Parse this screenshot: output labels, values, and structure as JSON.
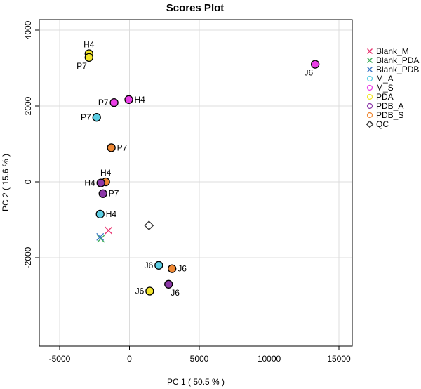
{
  "chart_data": {
    "type": "scatter",
    "title": "Scores Plot",
    "xlabel": "PC 1 ( 50.5 % )",
    "ylabel": "PC 2 ( 15.6 % )",
    "xlim": [
      -5000,
      15000
    ],
    "ylim": [
      -4000,
      4000
    ],
    "x_ticks": [
      -5000,
      0,
      5000,
      10000,
      15000
    ],
    "y_ticks": [
      -2000,
      0,
      2000,
      4000
    ],
    "grid": true,
    "legend_position": "right",
    "legend": [
      {
        "name": "Blank_M",
        "color": "#e8336f",
        "marker": "x"
      },
      {
        "name": "Blank_PDA",
        "color": "#3fae5a",
        "marker": "x"
      },
      {
        "name": "Blank_PDB",
        "color": "#3a76c6",
        "marker": "x"
      },
      {
        "name": "M_A",
        "color": "#5bcde3",
        "marker": "circle"
      },
      {
        "name": "M_S",
        "color": "#ea3ee6",
        "marker": "circle"
      },
      {
        "name": "PDA",
        "color": "#f2e52a",
        "marker": "circle"
      },
      {
        "name": "PDB_A",
        "color": "#8c38a8",
        "marker": "circle"
      },
      {
        "name": "PDB_S",
        "color": "#ee8733",
        "marker": "circle"
      },
      {
        "name": "QC",
        "color": "#333333",
        "marker": "diamond"
      }
    ],
    "points": [
      {
        "group": "PDA",
        "label": "H4",
        "x": -2900,
        "y": 3380,
        "label_pos": "above"
      },
      {
        "group": "PDA",
        "label": "P7",
        "x": -2900,
        "y": 3280,
        "label_pos": "below-left"
      },
      {
        "group": "M_S",
        "label": "J6",
        "x": 13300,
        "y": 3100,
        "label_pos": "below-left"
      },
      {
        "group": "M_S",
        "label": "P7",
        "x": -1100,
        "y": 2090,
        "label_pos": "left"
      },
      {
        "group": "M_S",
        "label": "H4",
        "x": -50,
        "y": 2170,
        "label_pos": "right"
      },
      {
        "group": "M_A",
        "label": "P7",
        "x": -2350,
        "y": 1700,
        "label_pos": "left"
      },
      {
        "group": "PDB_S",
        "label": "P7",
        "x": -1300,
        "y": 900,
        "label_pos": "right"
      },
      {
        "group": "PDB_S",
        "label": "H4",
        "x": -1700,
        "y": 0,
        "label_pos": "above"
      },
      {
        "group": "PDB_A",
        "label": "H4",
        "x": -2050,
        "y": -30,
        "label_pos": "left"
      },
      {
        "group": "PDB_A",
        "label": "P7",
        "x": -1900,
        "y": -310,
        "label_pos": "right"
      },
      {
        "group": "M_A",
        "label": "H4",
        "x": -2100,
        "y": -850,
        "label_pos": "right"
      },
      {
        "group": "Blank_M",
        "label": "",
        "x": -1500,
        "y": -1280,
        "label_pos": "none"
      },
      {
        "group": "Blank_PDA",
        "label": "",
        "x": -2050,
        "y": -1500,
        "label_pos": "none"
      },
      {
        "group": "Blank_PDB",
        "label": "",
        "x": -2100,
        "y": -1450,
        "label_pos": "none"
      },
      {
        "group": "QC",
        "label": "",
        "x": 1400,
        "y": -1150,
        "label_pos": "none"
      },
      {
        "group": "M_A",
        "label": "J6",
        "x": 2100,
        "y": -2200,
        "label_pos": "left"
      },
      {
        "group": "PDB_S",
        "label": "J6",
        "x": 3050,
        "y": -2290,
        "label_pos": "right"
      },
      {
        "group": "PDB_A",
        "label": "J6",
        "x": 2800,
        "y": -2700,
        "label_pos": "below-right"
      },
      {
        "group": "PDA",
        "label": "J6",
        "x": 1450,
        "y": -2880,
        "label_pos": "left"
      }
    ]
  }
}
